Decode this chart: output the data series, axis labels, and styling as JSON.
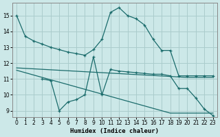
{
  "xlabel": "Humidex (Indice chaleur)",
  "bg_color": "#cce8e8",
  "grid_color": "#aacccc",
  "line_color": "#1a6b6b",
  "xlim": [
    -0.5,
    23.5
  ],
  "ylim": [
    8.6,
    15.8
  ],
  "yticks": [
    9,
    10,
    11,
    12,
    13,
    14,
    15
  ],
  "xticks": [
    0,
    1,
    2,
    3,
    4,
    5,
    6,
    7,
    8,
    9,
    10,
    11,
    12,
    13,
    14,
    15,
    16,
    17,
    18,
    19,
    20,
    21,
    22,
    23
  ],
  "line1_x": [
    0,
    1,
    2,
    3,
    4,
    5,
    6,
    7,
    8,
    9,
    10,
    11,
    12,
    13,
    14,
    15,
    16,
    17,
    18,
    19,
    20,
    21,
    22,
    23
  ],
  "line1_y": [
    15.0,
    13.7,
    13.4,
    13.2,
    13.0,
    12.85,
    12.7,
    12.6,
    12.5,
    12.85,
    13.5,
    15.2,
    15.5,
    15.0,
    14.8,
    14.4,
    13.5,
    12.8,
    12.8,
    11.2,
    11.2,
    11.2,
    11.2,
    11.2
  ],
  "line2_x": [
    0,
    1,
    2,
    3,
    4,
    5,
    6,
    7,
    8,
    9,
    10,
    11,
    12,
    13,
    14,
    15,
    16,
    17,
    18,
    19,
    20,
    21,
    22,
    23
  ],
  "line2_y": [
    11.7,
    11.67,
    11.64,
    11.61,
    11.58,
    11.55,
    11.52,
    11.49,
    11.46,
    11.43,
    11.4,
    11.37,
    11.34,
    11.31,
    11.28,
    11.25,
    11.22,
    11.19,
    11.16,
    11.13,
    11.1,
    11.1,
    11.1,
    11.1
  ],
  "line3_x": [
    0,
    1,
    2,
    3,
    4,
    5,
    6,
    7,
    8,
    9,
    10,
    11,
    12,
    13,
    14,
    15,
    16,
    17,
    18,
    19,
    20,
    21,
    22,
    23
  ],
  "line3_y": [
    11.55,
    11.4,
    11.25,
    11.1,
    10.95,
    10.8,
    10.65,
    10.5,
    10.35,
    10.2,
    10.05,
    9.9,
    9.75,
    9.6,
    9.45,
    9.3,
    9.15,
    9.0,
    8.85,
    8.85,
    8.85,
    8.85,
    8.85,
    8.85
  ],
  "line4_x": [
    3,
    4,
    5,
    6,
    7,
    8,
    9,
    10,
    11,
    12,
    13,
    14,
    15,
    16,
    17,
    18,
    19,
    20,
    21,
    22,
    23
  ],
  "line4_y": [
    11.0,
    10.9,
    9.0,
    9.55,
    9.7,
    10.0,
    12.4,
    10.0,
    11.6,
    11.5,
    11.45,
    11.4,
    11.35,
    11.3,
    11.3,
    11.2,
    10.4,
    10.4,
    9.8,
    9.1,
    8.7
  ]
}
